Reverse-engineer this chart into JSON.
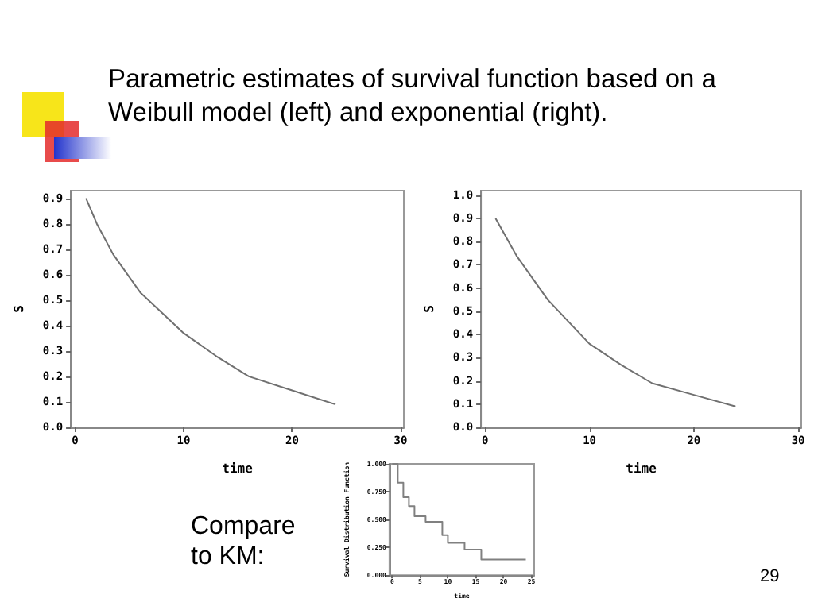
{
  "chart_data": [
    {
      "type": "line",
      "title": "Parametric estimates of survival function based on a Weibull model (left) and exponential (right).",
      "xlabel": "time",
      "ylabel": "S",
      "x": [
        1,
        2,
        3.5,
        6,
        8,
        10,
        13,
        16,
        20,
        24
      ],
      "series": [
        {
          "color": "#707070",
          "values": [
            0.9,
            0.8,
            0.68,
            0.53,
            0.45,
            0.37,
            0.28,
            0.2,
            0.145,
            0.09
          ]
        }
      ],
      "xlim": [
        -0.4,
        30.3
      ],
      "xticks": [
        0,
        10,
        20,
        30
      ],
      "ylim": [
        0,
        0.93
      ],
      "yticks": [
        {
          "value": 0,
          "label": "0.0"
        },
        0.1,
        0.2,
        0.3,
        0.4,
        0.5,
        0.6,
        0.7,
        0.8,
        0.9
      ]
    },
    {
      "type": "line",
      "xlabel": "time",
      "ylabel": "S",
      "x": [
        1,
        3,
        6,
        10,
        13,
        16,
        20,
        24
      ],
      "series": [
        {
          "color": "#707070",
          "values": [
            0.9,
            0.74,
            0.55,
            0.36,
            0.27,
            0.19,
            0.14,
            0.09
          ]
        }
      ],
      "xlim": [
        -0.4,
        30.3
      ],
      "xticks": [
        0,
        10,
        20,
        30
      ],
      "ylim": [
        0,
        1.02
      ],
      "yticks": [
        {
          "value": 0,
          "label": "0.0"
        },
        0.1,
        0.2,
        0.3,
        0.4,
        0.5,
        0.6,
        0.7,
        0.8,
        0.9,
        {
          "value": 1,
          "label": "1.0"
        }
      ]
    },
    {
      "type": "step",
      "xlabel": "time",
      "ylabel": "Survival Distribution Function",
      "annotations": [
        "Compare to KM:",
        "29"
      ],
      "x": [
        0,
        1,
        2,
        3,
        4,
        6,
        9,
        10,
        13,
        16,
        24
      ],
      "series": [
        {
          "color": "#808080",
          "values": [
            1,
            0.83,
            0.7,
            0.62,
            0.53,
            0.48,
            0.36,
            0.29,
            0.23,
            0.14,
            0.14
          ]
        }
      ],
      "xlim": [
        -0.5,
        25.5
      ],
      "xticks": [
        0,
        5,
        10,
        15,
        20,
        25
      ],
      "ylim": [
        0,
        1
      ],
      "yticks": [
        {
          "value": 0,
          "label": "0.000"
        },
        {
          "value": 0.25,
          "label": "0.250"
        },
        {
          "value": 0.5,
          "label": "0.500"
        },
        {
          "value": 0.75,
          "label": "0.750"
        },
        {
          "value": 1,
          "label": "1.000"
        }
      ]
    }
  ]
}
